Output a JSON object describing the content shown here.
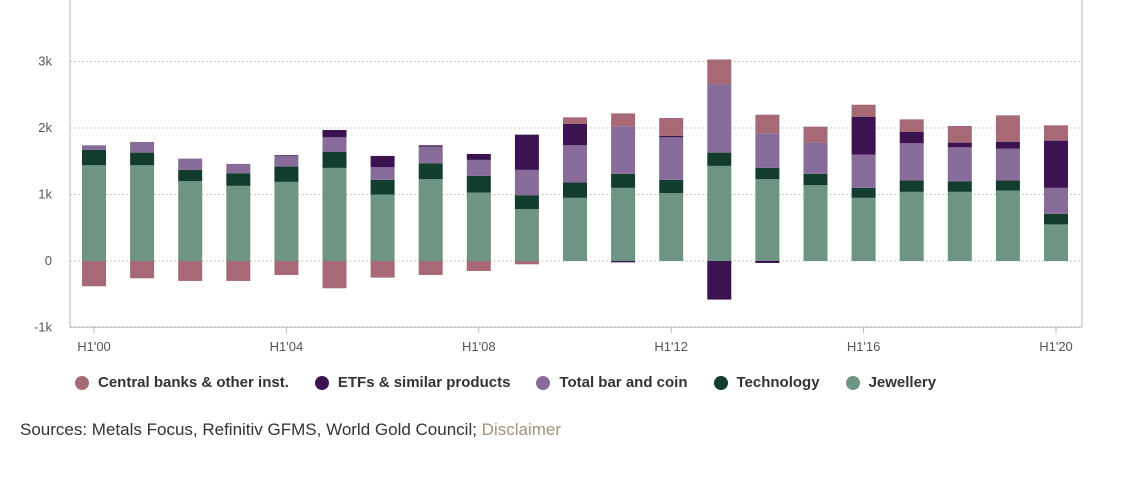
{
  "chart_data": {
    "type": "bar",
    "stacked": true,
    "categories": [
      "H1'00",
      "H1'01",
      "H1'02",
      "H1'03",
      "H1'04",
      "H1'05",
      "H1'06",
      "H1'07",
      "H1'08",
      "H1'09",
      "H1'10",
      "H1'11",
      "H1'12",
      "H1'13",
      "H1'14",
      "H1'15",
      "H1'16",
      "H1'17",
      "H1'18",
      "H1'19",
      "H1'20"
    ],
    "x_tick_labels": [
      "H1'00",
      "H1'04",
      "H1'08",
      "H1'12",
      "H1'16",
      "H1'20"
    ],
    "y_tick_labels": [
      "-1k",
      "0",
      "1k",
      "2k",
      "3k"
    ],
    "y_ticks": [
      -1000,
      0,
      1000,
      2000,
      3000
    ],
    "ylim": [
      -1000,
      3900
    ],
    "grid": true,
    "legend_position": "bottom",
    "series": [
      {
        "name": "Jewellery",
        "color": "#6e9484",
        "values": [
          1440,
          1440,
          1200,
          1130,
          1190,
          1400,
          1000,
          1230,
          1030,
          780,
          950,
          1100,
          1020,
          1430,
          1230,
          1140,
          950,
          1040,
          1040,
          1060,
          550
        ]
      },
      {
        "name": "Technology",
        "color": "#123d2e",
        "values": [
          230,
          190,
          170,
          190,
          230,
          240,
          220,
          240,
          250,
          210,
          230,
          210,
          200,
          200,
          170,
          170,
          150,
          170,
          160,
          150,
          160
        ]
      },
      {
        "name": "Total bar and coin",
        "color": "#876b98",
        "values": [
          70,
          160,
          170,
          140,
          160,
          220,
          190,
          250,
          240,
          380,
          560,
          710,
          640,
          1030,
          520,
          470,
          500,
          560,
          510,
          480,
          390
        ]
      },
      {
        "name": "ETFs & similar products",
        "color": "#3b1350",
        "values": [
          0,
          0,
          0,
          0,
          10,
          110,
          170,
          20,
          90,
          530,
          320,
          -20,
          20,
          -580,
          -30,
          0,
          570,
          170,
          70,
          100,
          710
        ]
      },
      {
        "name": "Central banks & other inst.",
        "color": "#a86976",
        "values": [
          -380,
          -260,
          -300,
          -300,
          -210,
          -410,
          -250,
          -210,
          -150,
          -50,
          100,
          200,
          270,
          370,
          280,
          240,
          180,
          190,
          250,
          400,
          230
        ]
      }
    ]
  },
  "legend": [
    {
      "label": "Central banks & other inst.",
      "color": "#a86976"
    },
    {
      "label": "ETFs & similar products",
      "color": "#3b1350"
    },
    {
      "label": "Total bar and coin",
      "color": "#876b98"
    },
    {
      "label": "Technology",
      "color": "#123d2e"
    },
    {
      "label": "Jewellery",
      "color": "#6e9484"
    }
  ],
  "source": {
    "prefix": "Sources: Metals Focus, Refinitiv GFMS, World Gold Council; ",
    "link": "Disclaimer"
  }
}
